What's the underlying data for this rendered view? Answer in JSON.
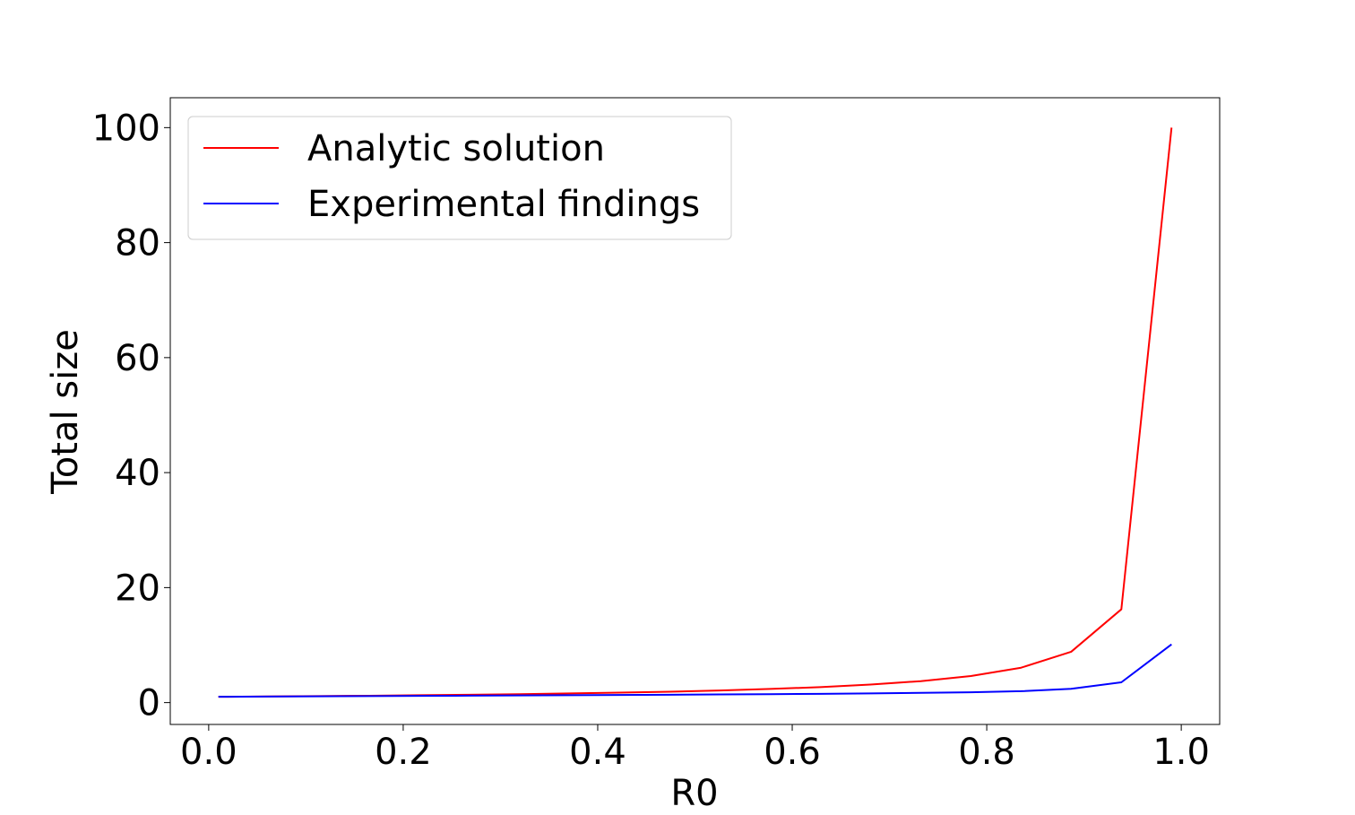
{
  "chart_data": {
    "type": "line",
    "title": "",
    "xlabel": "R0",
    "ylabel": "Total size",
    "xlim": [
      -0.0395,
      1.0395
    ],
    "ylim": [
      -3.8,
      105.2
    ],
    "xticks": [
      0.0,
      0.2,
      0.4,
      0.6,
      0.8,
      1.0
    ],
    "xtick_labels": [
      "0.0",
      "0.2",
      "0.4",
      "0.6",
      "0.8",
      "1.0"
    ],
    "yticks": [
      0,
      20,
      40,
      60,
      80,
      100
    ],
    "ytick_labels": [
      "0",
      "20",
      "40",
      "60",
      "80",
      "100"
    ],
    "grid": false,
    "legend_position": "top-left",
    "x": [
      0.01,
      0.0616,
      0.1132,
      0.1647,
      0.2163,
      0.2679,
      0.3195,
      0.3711,
      0.4226,
      0.4742,
      0.5258,
      0.5774,
      0.6289,
      0.6805,
      0.7321,
      0.7837,
      0.8353,
      0.8868,
      0.9384,
      0.99
    ],
    "series": [
      {
        "name": "Analytic solution",
        "color": "#ff0000",
        "values": [
          1.01,
          1.07,
          1.13,
          1.2,
          1.28,
          1.37,
          1.47,
          1.59,
          1.73,
          1.9,
          2.11,
          2.37,
          2.69,
          3.13,
          3.73,
          4.62,
          6.07,
          8.84,
          16.23,
          100.0
        ]
      },
      {
        "name": "Experimental findings",
        "color": "#0000ff",
        "values": [
          1.01,
          1.05,
          1.09,
          1.13,
          1.17,
          1.21,
          1.25,
          1.29,
          1.33,
          1.37,
          1.42,
          1.47,
          1.53,
          1.6,
          1.69,
          1.8,
          1.98,
          2.39,
          3.53,
          10.12
        ]
      }
    ]
  }
}
